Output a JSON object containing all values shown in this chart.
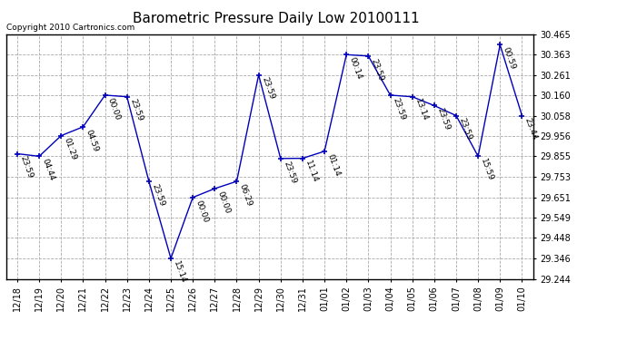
{
  "title": "Barometric Pressure Daily Low 20100111",
  "copyright": "Copyright 2010 Cartronics.com",
  "x_labels": [
    "12/18",
    "12/19",
    "12/20",
    "12/21",
    "12/22",
    "12/23",
    "12/24",
    "12/25",
    "12/26",
    "12/27",
    "12/28",
    "12/29",
    "12/30",
    "12/31",
    "01/01",
    "01/02",
    "01/03",
    "01/04",
    "01/05",
    "01/06",
    "01/07",
    "01/08",
    "01/09",
    "01/10"
  ],
  "y_values": [
    29.868,
    29.855,
    29.958,
    30.002,
    30.16,
    30.152,
    29.73,
    29.346,
    29.65,
    29.694,
    29.73,
    30.261,
    29.844,
    29.845,
    29.88,
    30.362,
    30.355,
    30.16,
    30.152,
    30.108,
    30.058,
    29.855,
    30.411,
    30.058
  ],
  "point_labels": [
    "23:59",
    "04:44",
    "01:29",
    "04:59",
    "00:00",
    "23:59",
    "23:59",
    "15:14",
    "00:00",
    "00:00",
    "06:29",
    "23:59",
    "23:59",
    "11:14",
    "01:14",
    "00:14",
    "23:59",
    "23:59",
    "13:14",
    "23:59",
    "23:59",
    "15:59",
    "00:59",
    "23:44"
  ],
  "line_color": "#0000bb",
  "marker_color": "#0000bb",
  "bg_color": "#ffffff",
  "grid_color": "#aaaaaa",
  "ylim_min": 29.244,
  "ylim_max": 30.465,
  "yticks": [
    29.244,
    29.346,
    29.448,
    29.549,
    29.651,
    29.753,
    29.855,
    29.956,
    30.058,
    30.16,
    30.261,
    30.363,
    30.465
  ],
  "title_fontsize": 11,
  "label_fontsize": 6.5,
  "tick_fontsize": 7,
  "copyright_fontsize": 6.5
}
